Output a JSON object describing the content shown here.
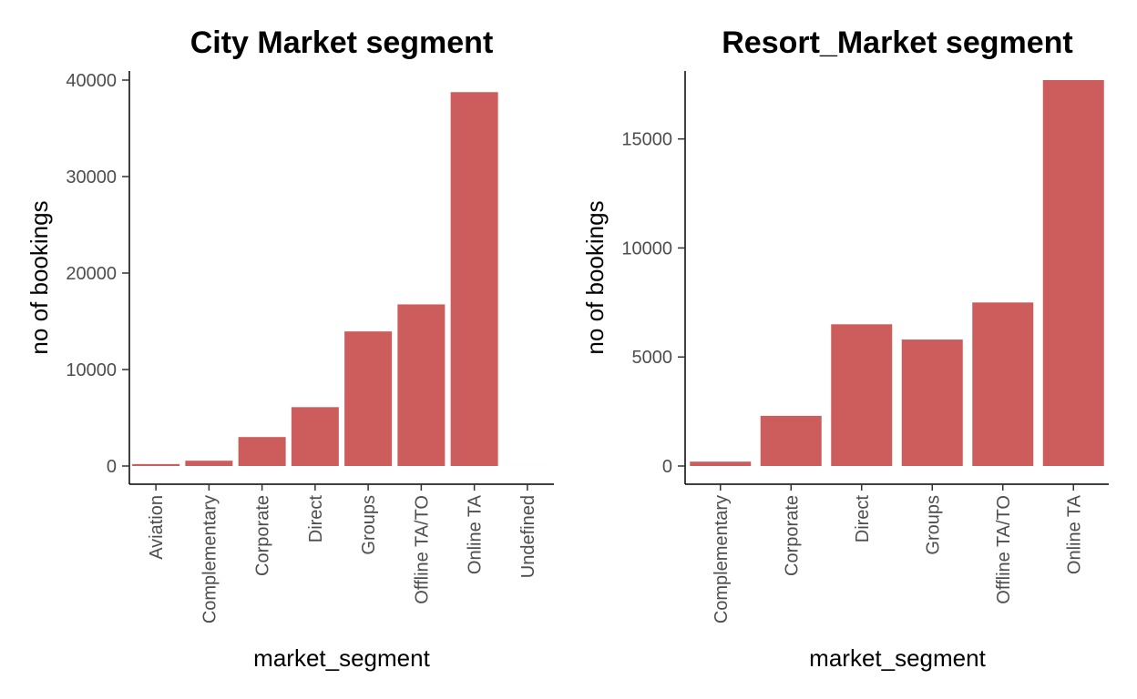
{
  "colors": {
    "bar": "#cd5c5c",
    "background": "#ffffff",
    "axis": "#000000",
    "tick_text": "#4d4d4d"
  },
  "chart_data": [
    {
      "type": "bar",
      "title": "City Market segment",
      "xlabel": "market_segment",
      "ylabel": "no of bookings",
      "categories": [
        "Aviation",
        "Complementary",
        "Corporate",
        "Direct",
        "Groups",
        "Offline TA/TO",
        "Online TA",
        "Undefined"
      ],
      "values": [
        200,
        550,
        3000,
        6100,
        13950,
        16750,
        38750,
        2
      ],
      "ylim": [
        0,
        40000
      ],
      "yticks": [
        0,
        10000,
        20000,
        30000,
        40000
      ],
      "ytick_labels": [
        "0",
        "10000",
        "20000",
        "30000",
        "40000"
      ],
      "grid": false
    },
    {
      "type": "bar",
      "title": "Resort_Market segment",
      "xlabel": "market_segment",
      "ylabel": "no of bookings",
      "categories": [
        "Complementary",
        "Corporate",
        "Direct",
        "Groups",
        "Offline TA/TO",
        "Online TA"
      ],
      "values": [
        200,
        2300,
        6500,
        5800,
        7500,
        17700
      ],
      "ylim": [
        0,
        17700
      ],
      "yticks": [
        0,
        5000,
        10000,
        15000
      ],
      "ytick_labels": [
        "0",
        "5000",
        "10000",
        "15000"
      ],
      "grid": false
    }
  ]
}
